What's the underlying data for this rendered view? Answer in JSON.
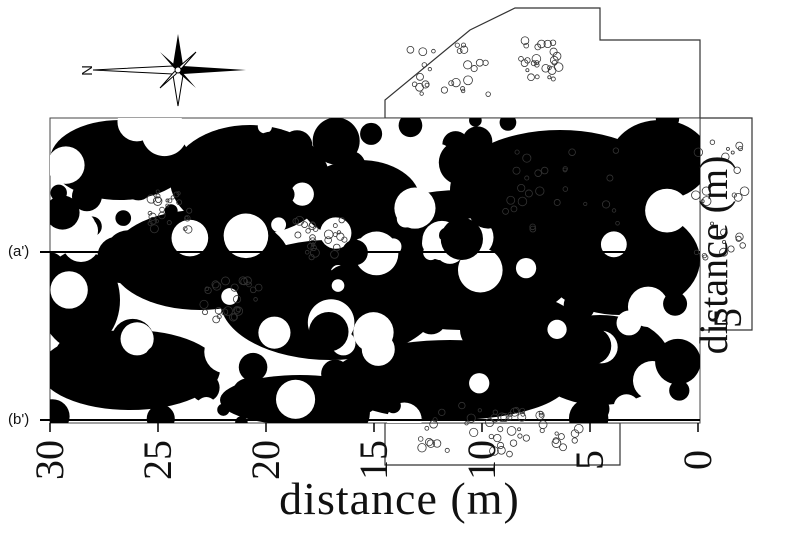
{
  "compass": {
    "north_label": "N",
    "icon": "compass-rose-icon"
  },
  "sections": [
    {
      "label": "(a')"
    },
    {
      "label": "(b')"
    }
  ],
  "axes": {
    "x_label": "distance (m)",
    "y_label": "distance (m)",
    "x_ticks": [
      "30",
      "25",
      "20",
      "15",
      "10",
      "5",
      "0"
    ],
    "y_tick_visible": "5"
  },
  "colors": {
    "anomaly": "#000000",
    "background": "#ffffff",
    "outline": "#333333"
  }
}
